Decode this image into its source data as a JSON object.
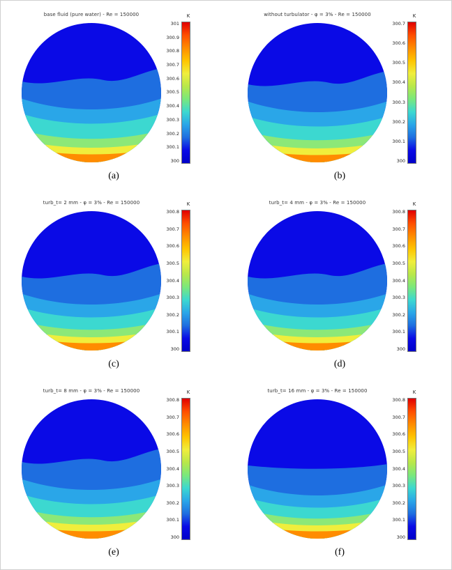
{
  "page": {
    "background": "#ffffff"
  },
  "colormap": "jet",
  "colormap_colors_cold_to_hot": [
    "#0000c8",
    "#0a0ae6",
    "#1e6ee0",
    "#2aa6e8",
    "#3cd8d0",
    "#7ae87c",
    "#b8e84a",
    "#f0ee3c",
    "#ffc400",
    "#ff8c00",
    "#ff4e00",
    "#e00000"
  ],
  "contour_band_colors_cold_to_hot": [
    "#0a0ae6",
    "#1e6ee0",
    "#2aa6e8",
    "#3cd8d0",
    "#8ce878",
    "#f0ee3c",
    "#ff8c00"
  ],
  "chart_data": [
    {
      "type": "heatmap",
      "id": "a",
      "title": "base fluid (pure water) -  Re = 150000",
      "caption": "(a)",
      "legend_unit": "K",
      "legend_range": [
        300,
        301
      ],
      "legend_ticks": [
        "301",
        "300.9",
        "300.8",
        "300.7",
        "300.6",
        "300.5",
        "300.4",
        "300.3",
        "300.2",
        "300.1",
        "300"
      ],
      "band_start_fractions": [
        0.4,
        0.57,
        0.68,
        0.8,
        0.875,
        0.93
      ],
      "top_boundary": "wavy",
      "description": "Temperature contour over circular tube cross-section; coldest (dark blue) at top, hottest (orange) along bottom rim."
    },
    {
      "type": "heatmap",
      "id": "b",
      "title": "without turbulator - φ = 3% - Re = 150000",
      "caption": "(b)",
      "legend_unit": "K",
      "legend_range": [
        300,
        300.7
      ],
      "legend_ticks": [
        "300.7",
        "300.6",
        "300.5",
        "300.4",
        "300.3",
        "300.2",
        "300.1",
        "300"
      ],
      "band_start_fractions": [
        0.42,
        0.59,
        0.7,
        0.81,
        0.88,
        0.935
      ],
      "top_boundary": "wavy",
      "description": "Temperature contour over circular tube cross-section; coldest (dark blue) at top, hottest (orange) along bottom rim."
    },
    {
      "type": "heatmap",
      "id": "c",
      "title": "turb_t= 2 mm - φ = 3% - Re = 150000",
      "caption": "(c)",
      "legend_unit": "K",
      "legend_range": [
        300,
        300.8
      ],
      "legend_ticks": [
        "300.8",
        "300.7",
        "300.6",
        "300.5",
        "300.4",
        "300.3",
        "300.2",
        "300.1",
        "300"
      ],
      "band_start_fractions": [
        0.45,
        0.62,
        0.72,
        0.82,
        0.885,
        0.935
      ],
      "top_boundary": "wavy",
      "description": "Temperature contour over circular tube cross-section; coldest (dark blue) at top, hottest (orange) along bottom rim."
    },
    {
      "type": "heatmap",
      "id": "d",
      "title": "turb_t= 4 mm - φ = 3% - Re = 150000",
      "caption": "(d)",
      "legend_unit": "K",
      "legend_range": [
        300,
        300.8
      ],
      "legend_ticks": [
        "300.8",
        "300.7",
        "300.6",
        "300.5",
        "300.4",
        "300.3",
        "300.2",
        "300.1",
        "300"
      ],
      "band_start_fractions": [
        0.45,
        0.62,
        0.72,
        0.82,
        0.885,
        0.935
      ],
      "top_boundary": "wavy",
      "description": "Temperature contour over circular tube cross-section; coldest (dark blue) at top, hottest (orange) along bottom rim."
    },
    {
      "type": "heatmap",
      "id": "e",
      "title": "turb_t= 8 mm - φ = 3% - Re = 150000",
      "caption": "(e)",
      "legend_unit": "K",
      "legend_range": [
        300,
        300.8
      ],
      "legend_ticks": [
        "300.8",
        "300.7",
        "300.6",
        "300.5",
        "300.4",
        "300.3",
        "300.2",
        "300.1",
        "300"
      ],
      "band_start_fractions": [
        0.43,
        0.6,
        0.71,
        0.815,
        0.88,
        0.935
      ],
      "top_boundary": "wavy",
      "description": "Temperature contour over circular tube cross-section; coldest (dark blue) at top, hottest (orange) along bottom rim."
    },
    {
      "type": "heatmap",
      "id": "f",
      "title": "turb_t= 16 mm - φ = 3% - Re = 150000",
      "caption": "(f)",
      "legend_unit": "K",
      "legend_range": [
        300,
        300.8
      ],
      "legend_ticks": [
        "300.8",
        "300.7",
        "300.6",
        "300.5",
        "300.4",
        "300.3",
        "300.2",
        "300.1",
        "300"
      ],
      "band_start_fractions": [
        0.48,
        0.64,
        0.735,
        0.825,
        0.885,
        0.935
      ],
      "top_boundary": "flat",
      "description": "Temperature contour over circular tube cross-section; coldest (dark blue) at top, hottest (orange) along bottom rim."
    }
  ]
}
